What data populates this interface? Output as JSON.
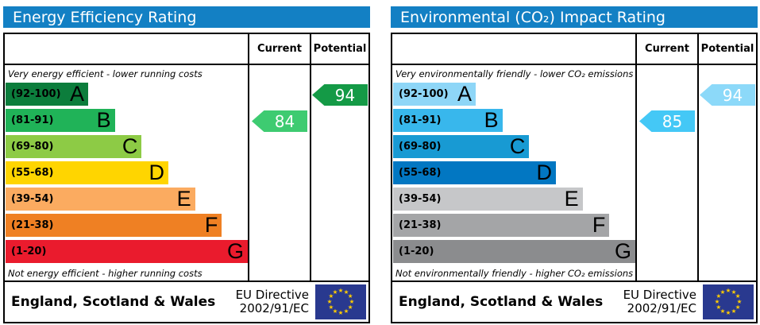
{
  "panels": [
    {
      "title": "Energy Efficiency Rating",
      "header_color": "#1380c4",
      "columns": {
        "current": "Current",
        "potential": "Potential"
      },
      "caption_top": "Very energy efficient - lower running costs",
      "caption_bottom": "Not energy efficient - higher running costs",
      "bands": [
        {
          "range": "(92-100)",
          "letter": "A",
          "color": "#0c7d3c"
        },
        {
          "range": "(81-91)",
          "letter": "B",
          "color": "#20b358"
        },
        {
          "range": "(69-80)",
          "letter": "C",
          "color": "#8dcb45"
        },
        {
          "range": "(55-68)",
          "letter": "D",
          "color": "#ffd500"
        },
        {
          "range": "(39-54)",
          "letter": "E",
          "color": "#fbab60"
        },
        {
          "range": "(21-38)",
          "letter": "F",
          "color": "#ef8023"
        },
        {
          "range": "(1-20)",
          "letter": "G",
          "color": "#ea1b2d"
        }
      ],
      "current": {
        "value": "84",
        "band_index": 1,
        "color": "#3ecb71"
      },
      "potential": {
        "value": "94",
        "band_index": 0,
        "color": "#149a46"
      },
      "footer": {
        "region": "England, Scotland & Wales",
        "directive_line1": "EU Directive",
        "directive_line2": "2002/91/EC",
        "flag_color": "#29398f",
        "star_color": "#ffcc00"
      }
    },
    {
      "title": "Environmental (CO₂) Impact Rating",
      "header_color": "#1380c4",
      "columns": {
        "current": "Current",
        "potential": "Potential"
      },
      "caption_top": "Very environmentally friendly - lower CO₂ emissions",
      "caption_bottom": "Not environmentally friendly - higher CO₂ emissions",
      "bands": [
        {
          "range": "(92-100)",
          "letter": "A",
          "color": "#8ed6f7"
        },
        {
          "range": "(81-91)",
          "letter": "B",
          "color": "#38b7ec"
        },
        {
          "range": "(69-80)",
          "letter": "C",
          "color": "#189ad3"
        },
        {
          "range": "(55-68)",
          "letter": "D",
          "color": "#0277c2"
        },
        {
          "range": "(39-54)",
          "letter": "E",
          "color": "#c6c7c9"
        },
        {
          "range": "(21-38)",
          "letter": "F",
          "color": "#a4a5a7"
        },
        {
          "range": "(1-20)",
          "letter": "G",
          "color": "#8b8c8e"
        }
      ],
      "current": {
        "value": "85",
        "band_index": 1,
        "color": "#44c8f6"
      },
      "potential": {
        "value": "94",
        "band_index": 0,
        "color": "#8cd9f9"
      },
      "footer": {
        "region": "England, Scotland & Wales",
        "directive_line1": "EU Directive",
        "directive_line2": "2002/91/EC",
        "flag_color": "#29398f",
        "star_color": "#ffcc00"
      }
    }
  ],
  "chart_data": [
    {
      "type": "bar",
      "title": "Energy Efficiency Rating",
      "categories": [
        "A (92-100)",
        "B (81-91)",
        "C (69-80)",
        "D (55-68)",
        "E (39-54)",
        "F (21-38)",
        "G (1-20)"
      ],
      "band_colors": [
        "#0c7d3c",
        "#20b358",
        "#8dcb45",
        "#ffd500",
        "#fbab60",
        "#ef8023",
        "#ea1b2d"
      ],
      "current": 84,
      "potential": 94,
      "scale": [
        1,
        100
      ],
      "annotations": [
        "Very energy efficient - lower running costs",
        "Not energy efficient - higher running costs"
      ]
    },
    {
      "type": "bar",
      "title": "Environmental (CO₂) Impact Rating",
      "categories": [
        "A (92-100)",
        "B (81-91)",
        "C (69-80)",
        "D (55-68)",
        "E (39-54)",
        "F (21-38)",
        "G (1-20)"
      ],
      "band_colors": [
        "#8ed6f7",
        "#38b7ec",
        "#189ad3",
        "#0277c2",
        "#c6c7c9",
        "#a4a5a7",
        "#8b8c8e"
      ],
      "current": 85,
      "potential": 94,
      "scale": [
        1,
        100
      ],
      "annotations": [
        "Very environmentally friendly - lower CO₂ emissions",
        "Not environmentally friendly - higher CO₂ emissions"
      ]
    }
  ]
}
